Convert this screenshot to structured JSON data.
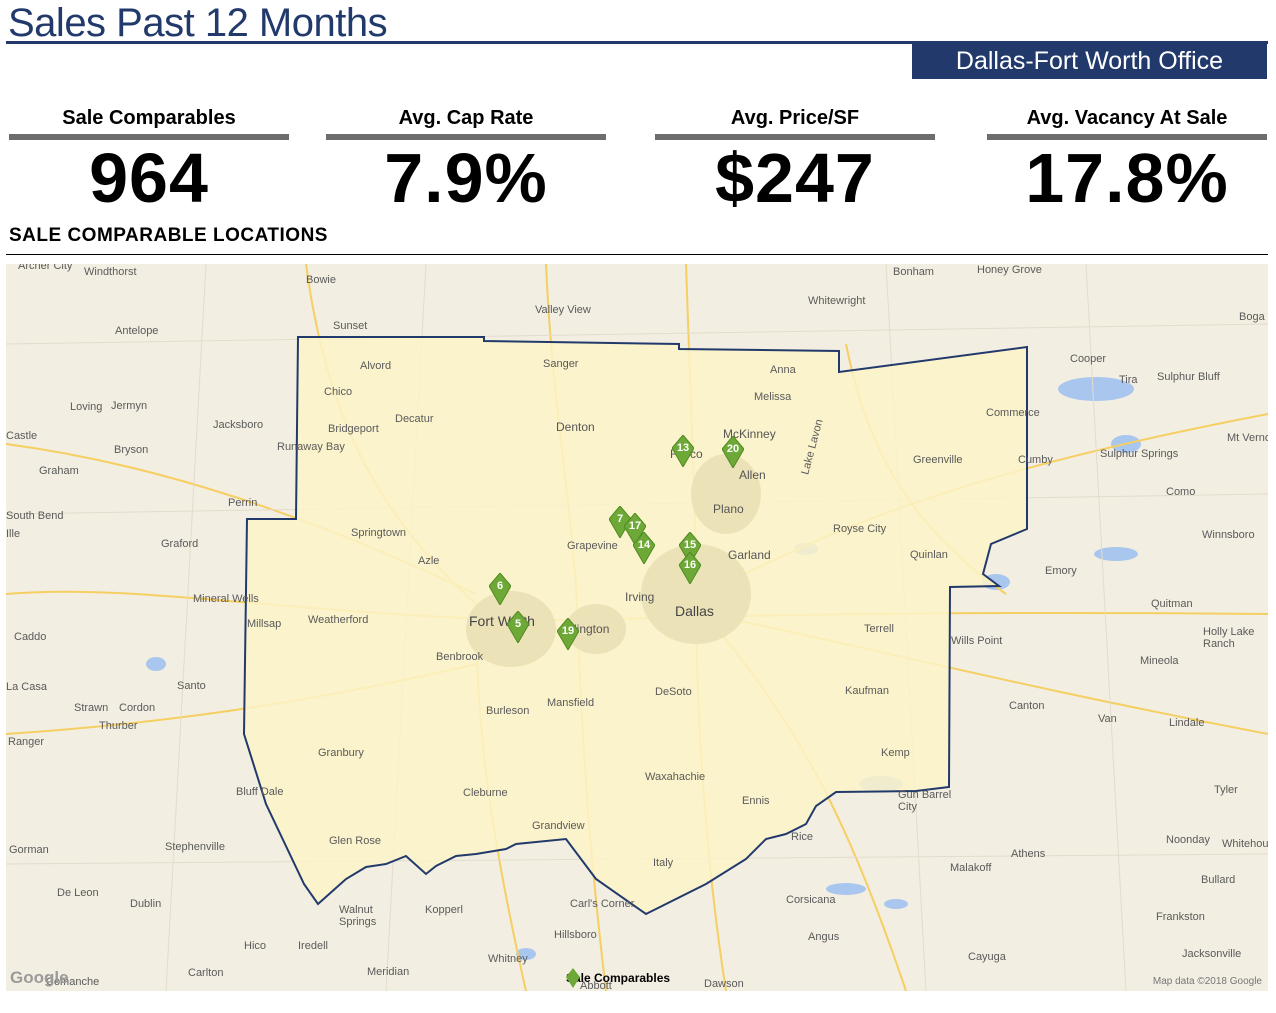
{
  "header": {
    "title": "Sales Past 12 Months",
    "office": "Dallas-Fort Worth Office"
  },
  "kpis": [
    {
      "label": "Sale Comparables",
      "value": "964"
    },
    {
      "label": "Avg. Cap Rate",
      "value": "7.9%"
    },
    {
      "label": "Avg. Price/SF",
      "value": "$247"
    },
    {
      "label": "Avg. Vacancy At Sale",
      "value": "17.8%"
    }
  ],
  "section": {
    "title": "SALE COMPARABLE LOCATIONS"
  },
  "map": {
    "credit": "Map data ©2018 Google",
    "google": "Google",
    "legend_label": "Sale Comparables",
    "marker_color": "#6ea937",
    "boundary_color": "#223a6b",
    "region_fill": "#fbf3c8",
    "markers": [
      "13",
      "20",
      "7",
      "17",
      "14",
      "15",
      "16",
      "6",
      "5",
      "19"
    ],
    "cities_major": [
      "Dallas",
      "Fort Worth",
      "Irving",
      "Arlington",
      "Plano",
      "Garland",
      "McKinney",
      "Denton",
      "Frisco",
      "Allen"
    ],
    "cities": [
      "Windthorst",
      "Bowie",
      "Bonham",
      "Honey Grove",
      "Whitewright",
      "Valley View",
      "Sunset",
      "Antelope",
      "Alvord",
      "Sanger",
      "Anna",
      "Cooper",
      "Sulphur Bluff",
      "Tira",
      "Melissa",
      "Chico",
      "Loving",
      "Jermyn",
      "Jacksboro",
      "Bridgeport",
      "Decatur",
      "Commerce",
      "Runaway Bay",
      "Bryson",
      "Greenville",
      "Cumby",
      "Sulphur Springs",
      "Graham",
      "Perrin",
      "Como",
      "South Bend",
      "Springtown",
      "Royse City",
      "Winnsboro",
      "Graford",
      "Grapevine",
      "Azle",
      "Quinlan",
      "Emory",
      "Mineral Wells",
      "Quitman",
      "Millsap",
      "Weatherford",
      "Caddo",
      "Terrell",
      "Wills Point",
      "Benbrook",
      "Mineola",
      "DeSoto",
      "Santo",
      "Kaufman",
      "Strawn",
      "Cordon",
      "Thurber",
      "Mansfield",
      "Burleson",
      "Canton",
      "Van",
      "Lindale",
      "Ranger",
      "Kemp",
      "Granbury",
      "Waxahachie",
      "Bluff Dale",
      "Cleburne",
      "Gun Barrel City",
      "Tyler",
      "Ennis",
      "Grandview",
      "Glen Rose",
      "Rice",
      "Gorman",
      "Stephenville",
      "Athens",
      "Noonday",
      "Italy",
      "Malakoff",
      "Bullard",
      "De Leon",
      "Dublin",
      "Corsicana",
      "Walnut Springs",
      "Kopperl",
      "Carl's Corner",
      "Frankston",
      "Hillsboro",
      "Angus",
      "Hico",
      "Iredell",
      "Cayuga",
      "Jacksonville",
      "Carlton",
      "Meridian",
      "Whitney",
      "Dawson",
      "Abbott",
      "Mt Vernon",
      "Lake Lavon",
      "Holly Lake Ranch",
      "Boga",
      "Archer City",
      "Castle",
      "Ille",
      "La Casa",
      "Whitehouse",
      "Comanche"
    ]
  }
}
